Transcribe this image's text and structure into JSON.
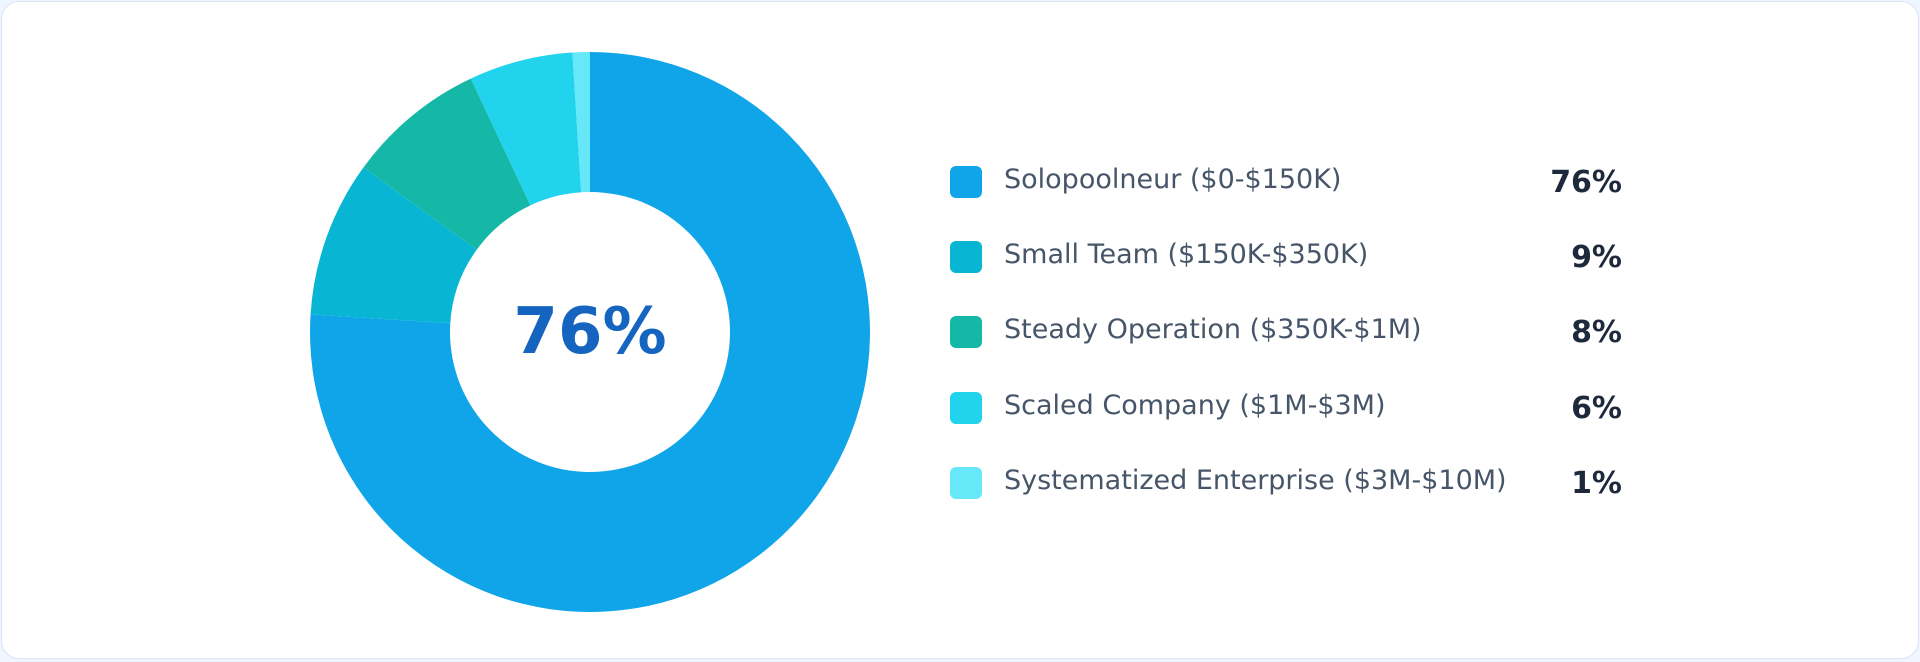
{
  "chart_data": {
    "type": "pie",
    "variant": "donut",
    "center_label": "76%",
    "start": "top",
    "direction": "clockwise",
    "legend_position": "right",
    "categories": [
      "Solopoolneur ($0-$150K)",
      "Small Team ($150K-$350K)",
      "Steady Operation ($350K-$1M)",
      "Scaled Company ($1M-$3M)",
      "Systematized Enterprise ($3M-$10M)"
    ],
    "values": [
      76,
      9,
      8,
      6,
      1
    ],
    "value_labels": [
      "76%",
      "9%",
      "8%",
      "6%",
      "1%"
    ],
    "colors": [
      "#10a5e8",
      "#08b6d4",
      "#15b8a6",
      "#22d3ee",
      "#67e8f9"
    ]
  }
}
